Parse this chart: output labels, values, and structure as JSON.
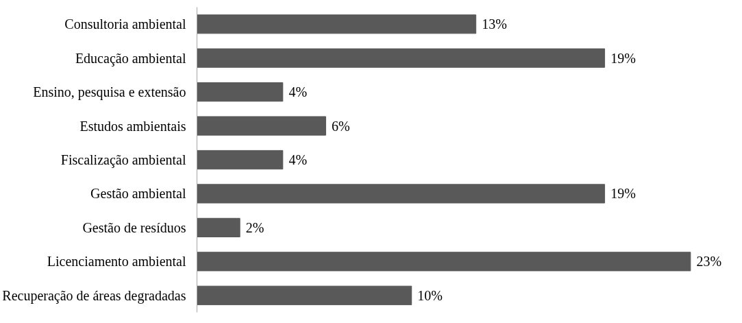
{
  "chart_data": {
    "type": "bar",
    "orientation": "horizontal",
    "categories": [
      "Consultoria ambiental",
      "Educação ambiental",
      "Ensino, pesquisa e extensão",
      "Estudos ambientais",
      "Fiscalização ambiental",
      "Gestão ambiental",
      "Gestão de resíduos",
      "Licenciamento ambiental",
      "Recuperação de áreas degradadas"
    ],
    "values": [
      13,
      19,
      4,
      6,
      4,
      19,
      2,
      23,
      10
    ],
    "value_labels": [
      "13%",
      "19%",
      "4%",
      "6%",
      "4%",
      "19%",
      "2%",
      "23%",
      "10%"
    ],
    "color": "#595959",
    "grid": false
  }
}
